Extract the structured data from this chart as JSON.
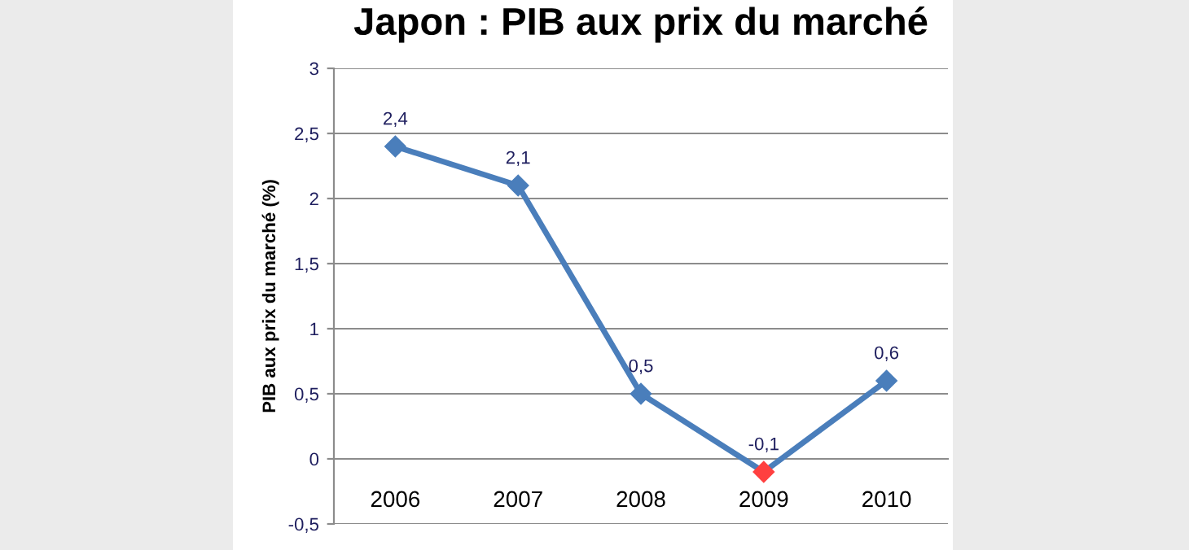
{
  "chart_data": {
    "type": "line",
    "title": "Japon : PIB aux prix du marché",
    "ylabel": "PIB aux prix du marché (%)",
    "categories": [
      "2006",
      "2007",
      "2008",
      "2009",
      "2010"
    ],
    "series": [
      {
        "color": "#4a7ebb",
        "colors": [
          "#4a7ebb",
          "#4a7ebb",
          "#4a7ebb",
          "#ff4040",
          "#4a7ebb"
        ],
        "values": [
          2.4,
          2.1,
          0.5,
          -0.1,
          0.6
        ],
        "value_labels": [
          "2,4",
          "2,1",
          "0,5",
          "-0,1",
          "0,6"
        ]
      }
    ],
    "ylim": [
      -0.5,
      3
    ],
    "yticks": [
      {
        "value": -0.5,
        "label": "-0,5"
      },
      0,
      {
        "value": 0.5,
        "label": "0,5"
      },
      1,
      {
        "value": 1.5,
        "label": "1,5"
      },
      2,
      {
        "value": 2.5,
        "label": "2,5"
      },
      3
    ],
    "grid": "y",
    "marker": "diamond",
    "line_style": "solid",
    "legend": false
  }
}
